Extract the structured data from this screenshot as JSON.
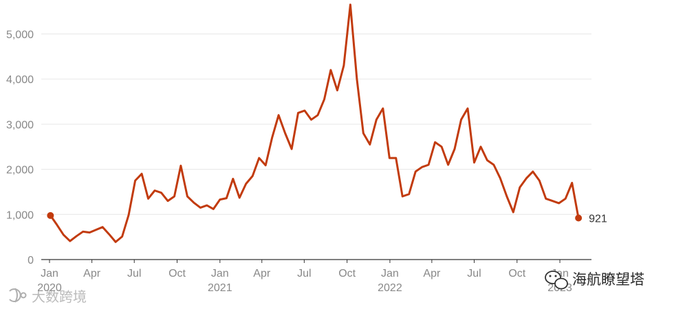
{
  "chart_data": {
    "type": "line",
    "title": "",
    "xlabel": "",
    "ylabel": "",
    "ylim": [
      0,
      5600
    ],
    "yticks": [
      0,
      1000,
      2000,
      3000,
      4000,
      5000
    ],
    "ytick_labels": [
      "0",
      "1,000",
      "2,000",
      "3,000",
      "4,000",
      "5,000"
    ],
    "xticks": [
      {
        "x": "2020-01",
        "label": "Jan",
        "year": "2020"
      },
      {
        "x": "2020-04",
        "label": "Apr",
        "year": ""
      },
      {
        "x": "2020-07",
        "label": "Jul",
        "year": ""
      },
      {
        "x": "2020-10",
        "label": "Oct",
        "year": ""
      },
      {
        "x": "2021-01",
        "label": "Jan",
        "year": "2021"
      },
      {
        "x": "2021-04",
        "label": "Apr",
        "year": ""
      },
      {
        "x": "2021-07",
        "label": "Jul",
        "year": ""
      },
      {
        "x": "2021-10",
        "label": "Oct",
        "year": ""
      },
      {
        "x": "2022-01",
        "label": "Jan",
        "year": "2022"
      },
      {
        "x": "2022-04",
        "label": "Apr",
        "year": ""
      },
      {
        "x": "2022-07",
        "label": "Jul",
        "year": ""
      },
      {
        "x": "2022-10",
        "label": "Oct",
        "year": ""
      },
      {
        "x": "2023-01",
        "label": "Jan",
        "year": "2023"
      }
    ],
    "grid": true,
    "legend": "none",
    "color": "#c23b0e",
    "end_label": "921",
    "series": [
      {
        "x": [
          "2020-01-03",
          "2020-01-17",
          "2020-01-31",
          "2020-02-14",
          "2020-02-28",
          "2020-03-13",
          "2020-03-27",
          "2020-04-10",
          "2020-04-24",
          "2020-05-08",
          "2020-05-22",
          "2020-06-05",
          "2020-06-19",
          "2020-07-03",
          "2020-07-17",
          "2020-07-31",
          "2020-08-14",
          "2020-08-28",
          "2020-09-11",
          "2020-09-25",
          "2020-10-09",
          "2020-10-23",
          "2020-11-06",
          "2020-11-20",
          "2020-12-04",
          "2020-12-18",
          "2021-01-01",
          "2021-01-15",
          "2021-01-29",
          "2021-02-12",
          "2021-02-26",
          "2021-03-12",
          "2021-03-26",
          "2021-04-09",
          "2021-04-23",
          "2021-05-07",
          "2021-05-21",
          "2021-06-04",
          "2021-06-18",
          "2021-07-02",
          "2021-07-16",
          "2021-07-30",
          "2021-08-13",
          "2021-08-27",
          "2021-09-10",
          "2021-09-24",
          "2021-10-08",
          "2021-10-22",
          "2021-11-05",
          "2021-11-19",
          "2021-12-03",
          "2021-12-17",
          "2021-12-31",
          "2022-01-14",
          "2022-01-28",
          "2022-02-11",
          "2022-02-25",
          "2022-03-11",
          "2022-03-25",
          "2022-04-08",
          "2022-04-22",
          "2022-05-06",
          "2022-05-20",
          "2022-06-03",
          "2022-06-17",
          "2022-07-01",
          "2022-07-15",
          "2022-07-29",
          "2022-08-12",
          "2022-08-26",
          "2022-09-09",
          "2022-09-23",
          "2022-10-07",
          "2022-10-21",
          "2022-11-04",
          "2022-11-18",
          "2022-12-02",
          "2022-12-16",
          "2022-12-30",
          "2023-01-13",
          "2023-01-27",
          "2023-02-10"
        ],
        "y": [
          976,
          770,
          550,
          410,
          520,
          620,
          600,
          660,
          720,
          560,
          390,
          510,
          990,
          1750,
          1900,
          1350,
          1530,
          1480,
          1300,
          1400,
          2080,
          1400,
          1260,
          1150,
          1200,
          1120,
          1330,
          1360,
          1790,
          1370,
          1680,
          1850,
          2250,
          2090,
          2700,
          3200,
          2800,
          2450,
          3250,
          3300,
          3100,
          3200,
          3550,
          4200,
          3750,
          4300,
          5650,
          4000,
          2800,
          2550,
          3100,
          3350,
          2250,
          2250,
          1400,
          1450,
          1950,
          2050,
          2100,
          2600,
          2500,
          2100,
          2450,
          3100,
          3350,
          2150,
          2500,
          2200,
          2100,
          1800,
          1400,
          1050,
          1600,
          1800,
          1950,
          1750,
          1350,
          1300,
          1250,
          1350,
          1700,
          921
        ]
      }
    ]
  },
  "watermarks": {
    "left": "大数跨境",
    "right": "海航瞭望塔"
  }
}
